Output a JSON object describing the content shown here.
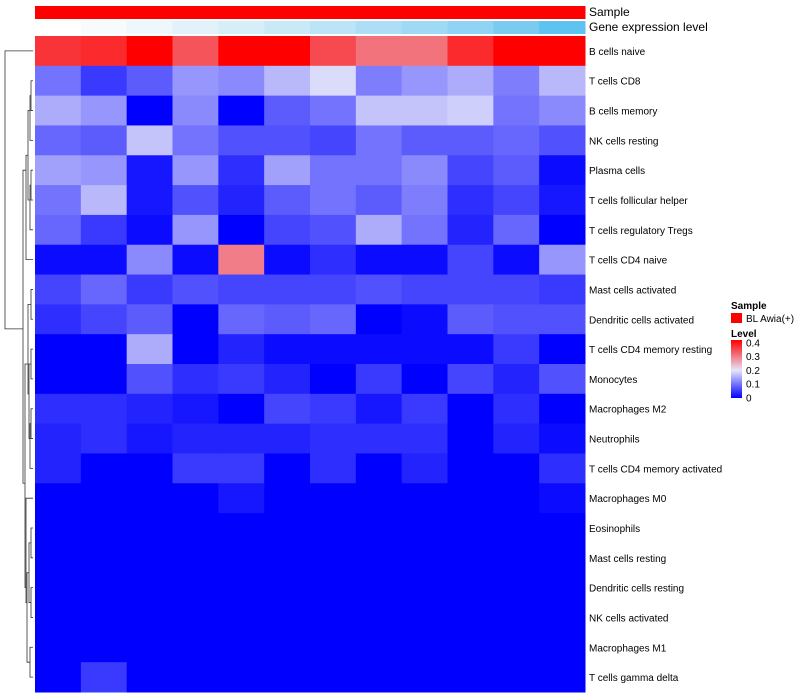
{
  "chart_data": {
    "type": "heatmap",
    "annotation_tracks": [
      {
        "label": "Sample",
        "colors": [
          "#ff0000",
          "#ff0000",
          "#ff0000",
          "#ff0000",
          "#ff0000",
          "#ff0000",
          "#ff0000",
          "#ff0000",
          "#ff0000",
          "#ff0000",
          "#ff0000",
          "#ff0000"
        ]
      },
      {
        "label": "Gene expression level",
        "colors": [
          "#ffffff",
          "#f8fbfd",
          "#eef7fb",
          "#e3f2fa",
          "#d6eef8",
          "#c9e9f7",
          "#bbe4f6",
          "#addef5",
          "#9fd9f4",
          "#90d3f3",
          "#7bcbf1",
          "#5fc3f0"
        ]
      }
    ],
    "rows": [
      "B cells naive",
      "T cells CD8",
      "B cells memory",
      "NK cells resting",
      "Plasma cells",
      "T cells follicular helper",
      "T cells regulatory  Tregs",
      "T cells CD4 naive",
      "Mast cells activated",
      "Dendritic cells activated",
      "T cells CD4 memory resting",
      "Monocytes",
      "Macrophages M2",
      "Neutrophils",
      "T cells CD4 memory activated",
      "Macrophages M0",
      "Eosinophils",
      "Mast cells resting",
      "Dendritic cells resting",
      "NK cells activated",
      "Macrophages M1",
      "T cells gamma delta"
    ],
    "values": [
      [
        0.37,
        0.38,
        0.42,
        0.34,
        0.42,
        0.42,
        0.35,
        0.31,
        0.31,
        0.38,
        0.42,
        0.42
      ],
      [
        0.1,
        0.05,
        0.08,
        0.13,
        0.12,
        0.16,
        0.19,
        0.11,
        0.13,
        0.15,
        0.11,
        0.16
      ],
      [
        0.15,
        0.13,
        0.0,
        0.12,
        0.0,
        0.08,
        0.1,
        0.17,
        0.17,
        0.18,
        0.1,
        0.12
      ],
      [
        0.09,
        0.08,
        0.17,
        0.1,
        0.07,
        0.07,
        0.06,
        0.1,
        0.08,
        0.08,
        0.09,
        0.07
      ],
      [
        0.14,
        0.13,
        0.02,
        0.13,
        0.04,
        0.14,
        0.1,
        0.1,
        0.12,
        0.06,
        0.08,
        0.01
      ],
      [
        0.1,
        0.16,
        0.02,
        0.07,
        0.03,
        0.08,
        0.1,
        0.08,
        0.11,
        0.04,
        0.06,
        0.02
      ],
      [
        0.09,
        0.05,
        0.01,
        0.13,
        0.0,
        0.06,
        0.07,
        0.15,
        0.1,
        0.03,
        0.09,
        0.0
      ],
      [
        0.01,
        0.01,
        0.12,
        0.01,
        0.3,
        0.01,
        0.04,
        0.01,
        0.01,
        0.06,
        0.01,
        0.13
      ],
      [
        0.06,
        0.09,
        0.05,
        0.07,
        0.06,
        0.06,
        0.06,
        0.07,
        0.06,
        0.06,
        0.06,
        0.05
      ],
      [
        0.04,
        0.06,
        0.08,
        0.0,
        0.09,
        0.08,
        0.09,
        0.0,
        0.01,
        0.08,
        0.07,
        0.07
      ],
      [
        0.0,
        0.0,
        0.15,
        0.0,
        0.03,
        0.01,
        0.01,
        0.01,
        0.01,
        0.01,
        0.05,
        0.0
      ],
      [
        0.0,
        0.0,
        0.07,
        0.04,
        0.05,
        0.03,
        0.0,
        0.05,
        0.0,
        0.06,
        0.03,
        0.07
      ],
      [
        0.04,
        0.04,
        0.03,
        0.02,
        0.0,
        0.06,
        0.05,
        0.02,
        0.05,
        0.0,
        0.04,
        0.0
      ],
      [
        0.03,
        0.04,
        0.02,
        0.03,
        0.03,
        0.03,
        0.04,
        0.04,
        0.04,
        0.0,
        0.03,
        0.01
      ],
      [
        0.03,
        0.0,
        0.0,
        0.05,
        0.05,
        0.0,
        0.04,
        0.0,
        0.03,
        0.0,
        0.0,
        0.04
      ],
      [
        0.0,
        0.0,
        0.0,
        0.0,
        0.02,
        0.0,
        0.0,
        0.0,
        0.0,
        0.0,
        0.0,
        0.01
      ],
      [
        0.0,
        0.0,
        0.0,
        0.0,
        0.0,
        0.0,
        0.0,
        0.0,
        0.0,
        0.0,
        0.0,
        0.0
      ],
      [
        0.0,
        0.0,
        0.0,
        0.0,
        0.0,
        0.0,
        0.0,
        0.0,
        0.0,
        0.0,
        0.0,
        0.0
      ],
      [
        0.0,
        0.0,
        0.0,
        0.0,
        0.0,
        0.0,
        0.0,
        0.0,
        0.0,
        0.0,
        0.0,
        0.0
      ],
      [
        0.0,
        0.0,
        0.0,
        0.0,
        0.0,
        0.0,
        0.0,
        0.0,
        0.0,
        0.0,
        0.0,
        0.0
      ],
      [
        0.0,
        0.0,
        0.0,
        0.0,
        0.0,
        0.0,
        0.0,
        0.0,
        0.0,
        0.0,
        0.0,
        0.0
      ],
      [
        0.0,
        0.05,
        0.0,
        0.0,
        0.0,
        0.0,
        0.0,
        0.0,
        0.0,
        0.0,
        0.0,
        0.0
      ]
    ],
    "color_scale": {
      "min": 0,
      "max": 0.42,
      "stops": [
        {
          "value": 0,
          "color": "#0000ff"
        },
        {
          "value": 0.2,
          "color": "#e6e6fa"
        },
        {
          "value": 0.42,
          "color": "#ff0000"
        }
      ]
    },
    "legend": {
      "placement": "right",
      "sample_title": "Sample",
      "sample_entry": {
        "label": "BL Awia(+)",
        "color": "#ff0000"
      },
      "level_title": "Level",
      "level_ticks": [
        "0.4",
        "0.3",
        "0.2",
        "0.1",
        "0"
      ],
      "level_tick_values": [
        0.4,
        0.3,
        0.2,
        0.1,
        0
      ]
    },
    "dendrogram": "rows"
  }
}
